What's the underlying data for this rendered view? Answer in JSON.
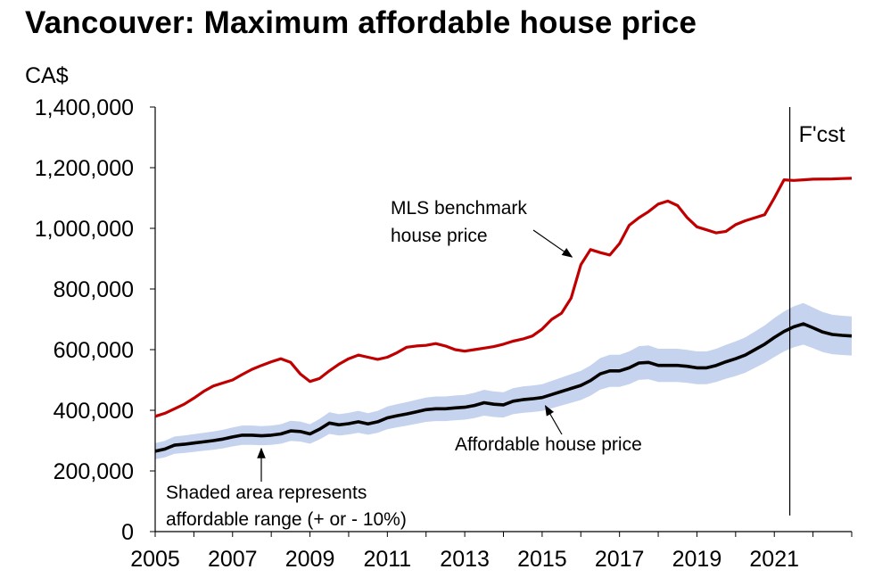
{
  "chart_data": {
    "type": "line",
    "title": "Vancouver: Maximum affordable house price",
    "ylabel": "CA$",
    "xlabel": "",
    "ylim": [
      0,
      1400000
    ],
    "xlim": [
      2005,
      2023
    ],
    "grid": false,
    "y_ticks": [
      {
        "value": 0,
        "label": "0"
      },
      {
        "value": 200000,
        "label": "200,000"
      },
      {
        "value": 400000,
        "label": "400,000"
      },
      {
        "value": 600000,
        "label": "600,000"
      },
      {
        "value": 800000,
        "label": "800,000"
      },
      {
        "value": 1000000,
        "label": "1,000,000"
      },
      {
        "value": 1200000,
        "label": "1,200,000"
      },
      {
        "value": 1400000,
        "label": "1,400,000"
      }
    ],
    "x_ticks": [
      {
        "value": 2005,
        "label": "2005"
      },
      {
        "value": 2007,
        "label": "2007"
      },
      {
        "value": 2009,
        "label": "2009"
      },
      {
        "value": 2011,
        "label": "2011"
      },
      {
        "value": 2013,
        "label": "2013"
      },
      {
        "value": 2015,
        "label": "2015"
      },
      {
        "value": 2017,
        "label": "2017"
      },
      {
        "value": 2019,
        "label": "2019"
      },
      {
        "value": 2021,
        "label": "2021"
      }
    ],
    "forecast": {
      "label": "F'cst",
      "start": 2021.4
    },
    "band_pct": 0.1,
    "series": [
      {
        "name": "MLS benchmark house price",
        "color": "#c00000",
        "points": [
          [
            2005.0,
            380000
          ],
          [
            2005.25,
            390000
          ],
          [
            2005.5,
            405000
          ],
          [
            2005.75,
            420000
          ],
          [
            2006.0,
            440000
          ],
          [
            2006.25,
            462000
          ],
          [
            2006.5,
            480000
          ],
          [
            2006.75,
            490000
          ],
          [
            2007.0,
            500000
          ],
          [
            2007.25,
            518000
          ],
          [
            2007.5,
            535000
          ],
          [
            2007.75,
            548000
          ],
          [
            2008.0,
            560000
          ],
          [
            2008.25,
            570000
          ],
          [
            2008.5,
            558000
          ],
          [
            2008.75,
            520000
          ],
          [
            2009.0,
            495000
          ],
          [
            2009.25,
            505000
          ],
          [
            2009.5,
            530000
          ],
          [
            2009.75,
            552000
          ],
          [
            2010.0,
            570000
          ],
          [
            2010.25,
            582000
          ],
          [
            2010.5,
            575000
          ],
          [
            2010.75,
            568000
          ],
          [
            2011.0,
            575000
          ],
          [
            2011.25,
            590000
          ],
          [
            2011.5,
            608000
          ],
          [
            2011.75,
            612000
          ],
          [
            2012.0,
            614000
          ],
          [
            2012.25,
            620000
          ],
          [
            2012.5,
            612000
          ],
          [
            2012.75,
            600000
          ],
          [
            2013.0,
            595000
          ],
          [
            2013.25,
            600000
          ],
          [
            2013.5,
            605000
          ],
          [
            2013.75,
            610000
          ],
          [
            2014.0,
            618000
          ],
          [
            2014.25,
            628000
          ],
          [
            2014.5,
            635000
          ],
          [
            2014.75,
            645000
          ],
          [
            2015.0,
            668000
          ],
          [
            2015.25,
            700000
          ],
          [
            2015.5,
            720000
          ],
          [
            2015.75,
            770000
          ],
          [
            2016.0,
            880000
          ],
          [
            2016.25,
            930000
          ],
          [
            2016.5,
            920000
          ],
          [
            2016.75,
            912000
          ],
          [
            2017.0,
            950000
          ],
          [
            2017.25,
            1010000
          ],
          [
            2017.5,
            1035000
          ],
          [
            2017.75,
            1055000
          ],
          [
            2018.0,
            1080000
          ],
          [
            2018.25,
            1090000
          ],
          [
            2018.5,
            1075000
          ],
          [
            2018.75,
            1035000
          ],
          [
            2019.0,
            1005000
          ],
          [
            2019.25,
            995000
          ],
          [
            2019.5,
            985000
          ],
          [
            2019.75,
            990000
          ],
          [
            2020.0,
            1012000
          ],
          [
            2020.25,
            1025000
          ],
          [
            2020.5,
            1035000
          ],
          [
            2020.75,
            1045000
          ],
          [
            2021.0,
            1100000
          ],
          [
            2021.25,
            1160000
          ],
          [
            2021.5,
            1158000
          ],
          [
            2021.75,
            1160000
          ],
          [
            2022.0,
            1162000
          ],
          [
            2022.5,
            1163000
          ],
          [
            2022.75,
            1164000
          ],
          [
            2023.0,
            1165000
          ]
        ]
      },
      {
        "name": "Affordable house price",
        "color": "#000000",
        "points": [
          [
            2005.0,
            265000
          ],
          [
            2005.25,
            272000
          ],
          [
            2005.5,
            285000
          ],
          [
            2005.75,
            288000
          ],
          [
            2006.0,
            292000
          ],
          [
            2006.25,
            296000
          ],
          [
            2006.5,
            300000
          ],
          [
            2006.75,
            305000
          ],
          [
            2007.0,
            312000
          ],
          [
            2007.25,
            318000
          ],
          [
            2007.5,
            318000
          ],
          [
            2007.75,
            316000
          ],
          [
            2008.0,
            318000
          ],
          [
            2008.25,
            322000
          ],
          [
            2008.5,
            332000
          ],
          [
            2008.75,
            330000
          ],
          [
            2009.0,
            322000
          ],
          [
            2009.25,
            338000
          ],
          [
            2009.5,
            358000
          ],
          [
            2009.75,
            352000
          ],
          [
            2010.0,
            356000
          ],
          [
            2010.25,
            362000
          ],
          [
            2010.5,
            355000
          ],
          [
            2010.75,
            362000
          ],
          [
            2011.0,
            375000
          ],
          [
            2011.25,
            382000
          ],
          [
            2011.5,
            388000
          ],
          [
            2011.75,
            395000
          ],
          [
            2012.0,
            402000
          ],
          [
            2012.25,
            405000
          ],
          [
            2012.5,
            405000
          ],
          [
            2012.75,
            408000
          ],
          [
            2013.0,
            410000
          ],
          [
            2013.25,
            416000
          ],
          [
            2013.5,
            425000
          ],
          [
            2013.75,
            420000
          ],
          [
            2014.0,
            418000
          ],
          [
            2014.25,
            430000
          ],
          [
            2014.5,
            435000
          ],
          [
            2014.75,
            438000
          ],
          [
            2015.0,
            442000
          ],
          [
            2015.25,
            452000
          ],
          [
            2015.5,
            462000
          ],
          [
            2015.75,
            472000
          ],
          [
            2016.0,
            482000
          ],
          [
            2016.25,
            498000
          ],
          [
            2016.5,
            520000
          ],
          [
            2016.75,
            530000
          ],
          [
            2017.0,
            530000
          ],
          [
            2017.25,
            540000
          ],
          [
            2017.5,
            556000
          ],
          [
            2017.75,
            558000
          ],
          [
            2018.0,
            548000
          ],
          [
            2018.25,
            548000
          ],
          [
            2018.5,
            548000
          ],
          [
            2018.75,
            545000
          ],
          [
            2019.0,
            540000
          ],
          [
            2019.25,
            540000
          ],
          [
            2019.5,
            548000
          ],
          [
            2019.75,
            560000
          ],
          [
            2020.0,
            570000
          ],
          [
            2020.25,
            582000
          ],
          [
            2020.5,
            600000
          ],
          [
            2020.75,
            618000
          ],
          [
            2021.0,
            640000
          ],
          [
            2021.25,
            660000
          ],
          [
            2021.5,
            675000
          ],
          [
            2021.75,
            685000
          ],
          [
            2022.0,
            672000
          ],
          [
            2022.25,
            658000
          ],
          [
            2022.5,
            650000
          ],
          [
            2022.75,
            647000
          ],
          [
            2023.0,
            645000
          ]
        ]
      }
    ],
    "annotations": [
      {
        "id": "mls",
        "lines": [
          "MLS benchmark",
          "house price"
        ],
        "arrow_to": [
          2016.0,
          935000
        ]
      },
      {
        "id": "afford",
        "lines": [
          "Affordable house price"
        ],
        "arrow_to": [
          2015.5,
          450000
        ]
      },
      {
        "id": "shaded",
        "lines": [
          "Shaded area represents",
          "affordable range (+ or - 10%)"
        ],
        "arrow_to": [
          2007.8,
          280000
        ]
      }
    ]
  }
}
